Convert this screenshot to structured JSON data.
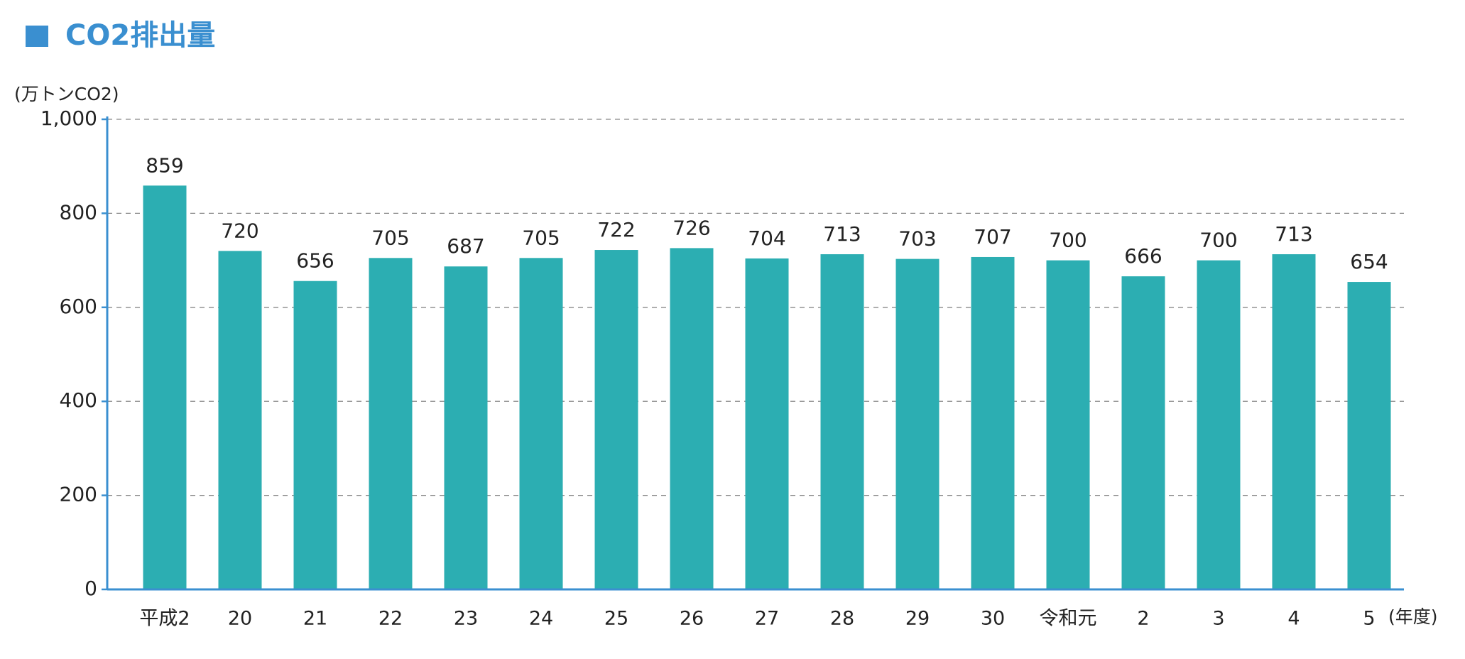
{
  "chart_data": {
    "type": "bar",
    "title": "CO2排出量",
    "y_label": "(万トンCO2)",
    "x_label": "(年度)",
    "categories": [
      "平成2",
      "20",
      "21",
      "22",
      "23",
      "24",
      "25",
      "26",
      "27",
      "28",
      "29",
      "30",
      "令和元",
      "2",
      "3",
      "4",
      "5"
    ],
    "values": [
      859,
      720,
      656,
      705,
      687,
      705,
      722,
      726,
      704,
      713,
      703,
      707,
      700,
      666,
      700,
      713,
      654
    ],
    "color": "#2caeb2",
    "ylim": [
      0,
      1000
    ],
    "yticks": [
      0,
      200,
      400,
      600,
      800,
      {
        "value": 1000,
        "label": "1,000"
      }
    ],
    "grid": true
  }
}
